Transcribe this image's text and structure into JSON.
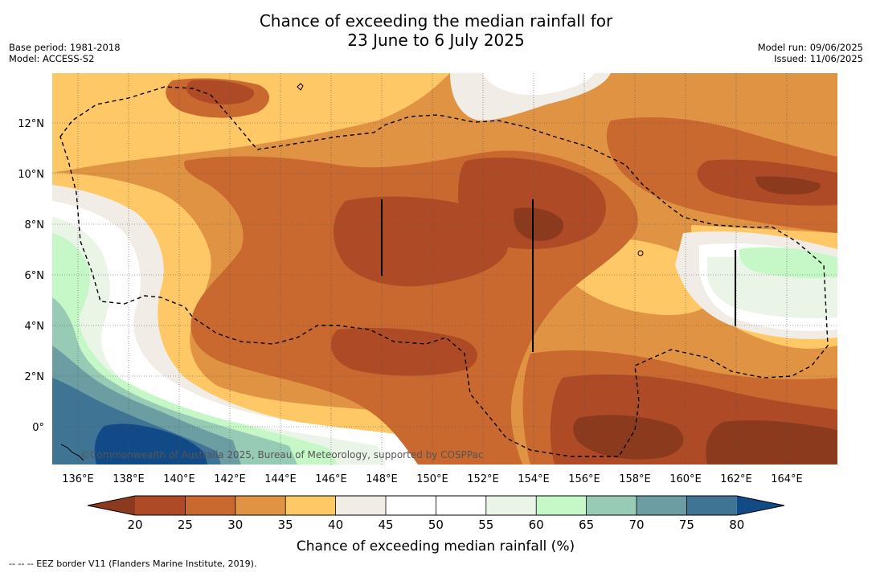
{
  "title": {
    "line1": "Chance of exceeding the median rainfall for",
    "line2": "23 June to 6 July 2025"
  },
  "meta": {
    "base_period": "Base period: 1981-2018",
    "model": "Model: ACCESS-S2",
    "model_run": "Model run: 09/06/2025",
    "issued": "Issued: 11/06/2025"
  },
  "credit": "©Commonwealth of Australia 2025, Bureau of Meteorology, supported by COSPPac",
  "footnote": "--  --  -- EEZ border V11 (Flanders Marine Institute, 2019).",
  "colorbar": {
    "label": "Chance of exceeding median rainfall (%)",
    "ticks": [
      "20",
      "25",
      "30",
      "35",
      "40",
      "45",
      "50",
      "55",
      "60",
      "65",
      "70",
      "75",
      "80"
    ],
    "colors": {
      "below_20": "#8c3a1e",
      "c20_25": "#ae4a26",
      "c25_30": "#c9682f",
      "c30_35": "#e09443",
      "c35_40": "#fdc865",
      "c40_45": "#f1ece6",
      "c45_55": "#ffffff",
      "c55_60": "#eaf5e8",
      "c60_65": "#c6f8c7",
      "c65_70": "#98cbb6",
      "c70_75": "#6c9da3",
      "c75_80": "#3f7495",
      "above_80": "#114a87"
    }
  },
  "axes": {
    "lon_ticks": [
      "136°E",
      "138°E",
      "140°E",
      "142°E",
      "144°E",
      "146°E",
      "148°E",
      "150°E",
      "152°E",
      "154°E",
      "156°E",
      "158°E",
      "160°E",
      "162°E",
      "164°E"
    ],
    "lat_ticks": [
      "12°N",
      "10°N",
      "8°N",
      "6°N",
      "4°N",
      "2°N",
      "0°"
    ]
  }
}
